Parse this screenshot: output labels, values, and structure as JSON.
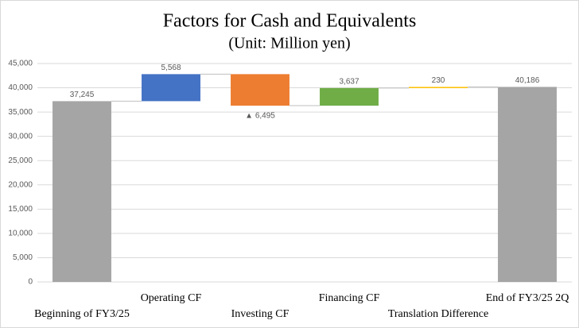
{
  "chart_data": {
    "type": "waterfall",
    "title": "Factors for Cash and Equivalents",
    "subtitle": "(Unit: Million yen)",
    "categories": [
      "Beginning of FY3/25",
      "Operating CF",
      "Investing CF",
      "Financing CF",
      "Translation Difference",
      "End of FY3/25 2Q"
    ],
    "values": [
      37245,
      5568,
      -6495,
      3637,
      230,
      40186
    ],
    "value_labels": [
      "37,245",
      "5,568",
      "▲ 6,495",
      "3,637",
      "230",
      "40,186"
    ],
    "colors": [
      "#a5a5a5",
      "#4472c4",
      "#ed7d31",
      "#70ad47",
      "#ffc000",
      "#a5a5a5"
    ],
    "ylim": [
      0,
      45000
    ],
    "yticks": [
      0,
      {
        "value": 5000,
        "label": "5,000"
      },
      {
        "value": 10000,
        "label": "10,000"
      },
      {
        "value": 15000,
        "label": "15,000"
      },
      {
        "value": 20000,
        "label": "20,000"
      },
      {
        "value": 25000,
        "label": "25,000"
      },
      {
        "value": 30000,
        "label": "30,000"
      },
      {
        "value": 35000,
        "label": "35,000"
      },
      {
        "value": 40000,
        "label": "40,000"
      },
      {
        "value": 45000,
        "label": "45,000"
      }
    ],
    "grid": true
  }
}
